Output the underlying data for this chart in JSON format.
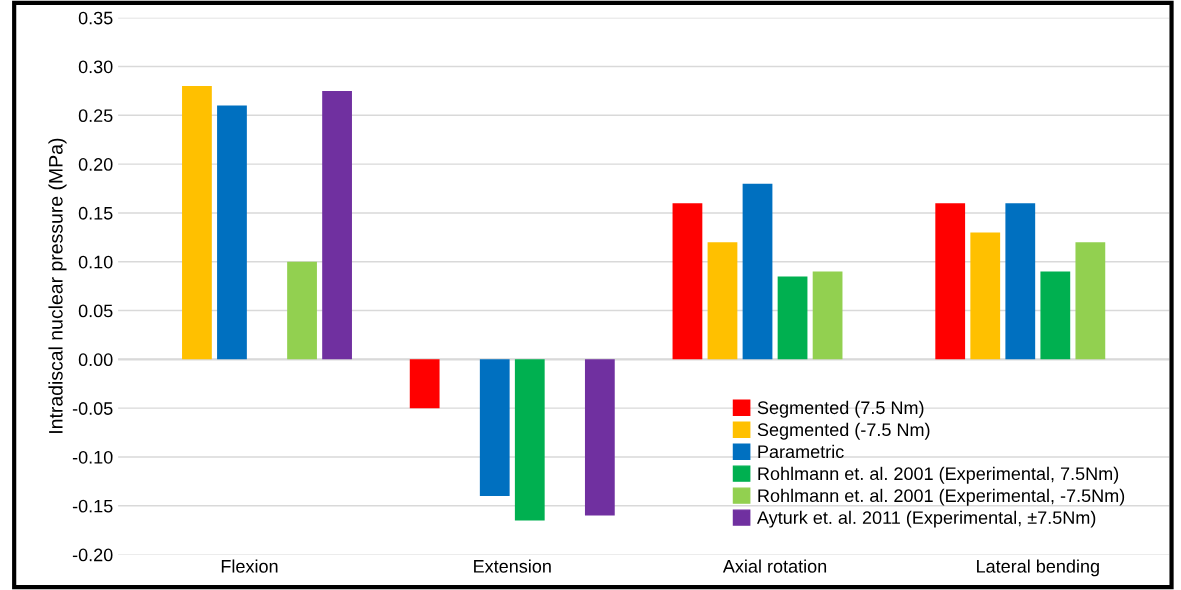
{
  "chart_data": {
    "type": "bar",
    "ylabel": "Intradiscal nuclear pressure (MPa)",
    "categories": [
      "Flexion",
      "Extension",
      "Axial rotation",
      "Lateral bending"
    ],
    "series": [
      {
        "name": "Segmented (7.5 Nm)",
        "color": "#ff0000",
        "values": [
          0,
          -0.05,
          0.16,
          0.16
        ]
      },
      {
        "name": "Segmented (-7.5 Nm)",
        "color": "#ffc000",
        "values": [
          0.28,
          0,
          0.12,
          0.13
        ]
      },
      {
        "name": "Parametric",
        "color": "#0070c0",
        "values": [
          0.26,
          -0.14,
          0.18,
          0.16
        ]
      },
      {
        "name": "Rohlmann et. al. 2001 (Experimental, 7.5Nm)",
        "color": "#00b050",
        "values": [
          0,
          -0.165,
          0.085,
          0.09
        ]
      },
      {
        "name": "Rohlmann et. al. 2001 (Experimental, -7.5Nm)",
        "color": "#92d050",
        "values": [
          0.1,
          0,
          0.09,
          0.12
        ]
      },
      {
        "name": "Ayturk et. al. 2011 (Experimental, ±7.5Nm)",
        "color": "#7030a0",
        "values": [
          0.275,
          -0.16,
          null,
          null
        ]
      }
    ],
    "ylim": [
      -0.2,
      0.35
    ],
    "yticks": [
      {
        "value": -0.2,
        "label": "-0.20"
      },
      {
        "value": -0.15,
        "label": "-0.15"
      },
      {
        "value": -0.1,
        "label": "-0.10"
      },
      {
        "value": -0.05,
        "label": "-0.05"
      },
      {
        "value": 0,
        "label": "0.00"
      },
      {
        "value": 0.05,
        "label": "0.05"
      },
      {
        "value": 0.1,
        "label": "0.10"
      },
      {
        "value": 0.15,
        "label": "0.15"
      },
      {
        "value": 0.2,
        "label": "0.20"
      },
      {
        "value": 0.25,
        "label": "0.25"
      },
      {
        "value": 0.3,
        "label": "0.30"
      },
      {
        "value": 0.35,
        "label": "0.35"
      }
    ],
    "grid": "y",
    "legend": "bottom right"
  }
}
